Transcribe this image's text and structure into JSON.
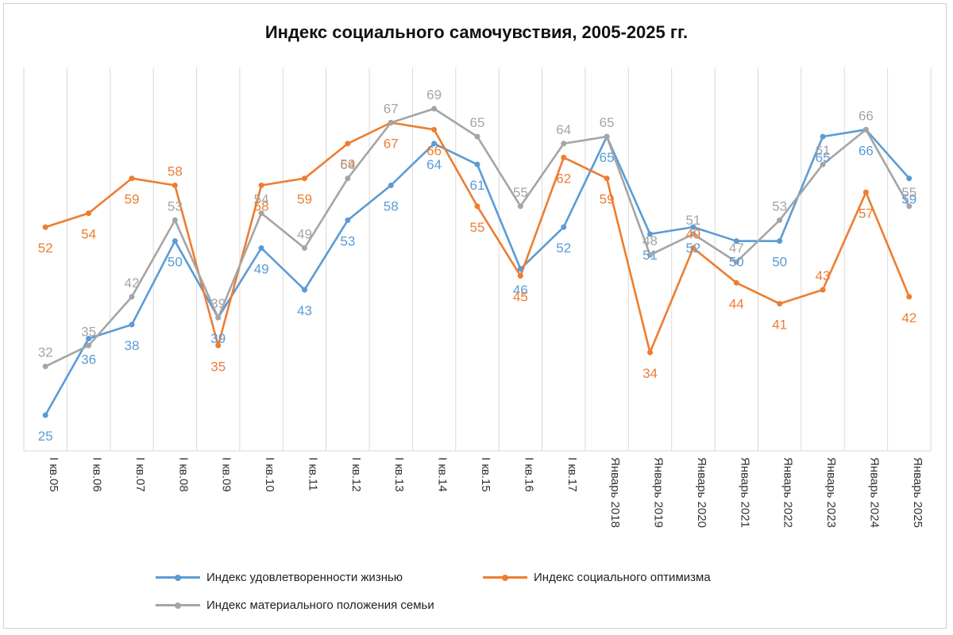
{
  "chart_data": {
    "type": "line",
    "title": "Индекс социального самочувствия, 2005-2025 гг.",
    "categories": [
      "I кв.05",
      "I кв.06",
      "I кв.07",
      "I кв.08",
      "I кв.09",
      "I кв.10",
      "I кв.11",
      "I кв.12",
      "I кв.13",
      "I кв.14",
      "I кв.15",
      "I кв.16",
      "I кв.17",
      "Январь 2018",
      "Январь 2019",
      "Январь 2020",
      "Январь 2021",
      "Январь 2022",
      "Январь 2023",
      "Январь 2024",
      "Январь 2025"
    ],
    "series": [
      {
        "name": "Индекс удовлетворенности жизнью",
        "color": "#5B9BD5",
        "values": [
          25,
          36,
          38,
          50,
          39,
          49,
          43,
          53,
          58,
          64,
          61,
          46,
          52,
          65,
          51,
          52,
          50,
          50,
          65,
          66,
          59
        ]
      },
      {
        "name": "Индекс социального оптимизма",
        "color": "#ED7D31",
        "values": [
          52,
          54,
          59,
          58,
          35,
          58,
          59,
          64,
          67,
          66,
          55,
          45,
          62,
          59,
          34,
          49,
          44,
          41,
          43,
          57,
          42
        ]
      },
      {
        "name": "Индекс материального положения семьи",
        "color": "#A5A5A5",
        "values": [
          32,
          35,
          42,
          53,
          39,
          54,
          49,
          59,
          67,
          69,
          65,
          55,
          64,
          65,
          48,
          51,
          47,
          53,
          61,
          66,
          55
        ]
      }
    ],
    "ylim": [
      20,
      75
    ],
    "grid": "vertical",
    "legend_position": "bottom"
  }
}
